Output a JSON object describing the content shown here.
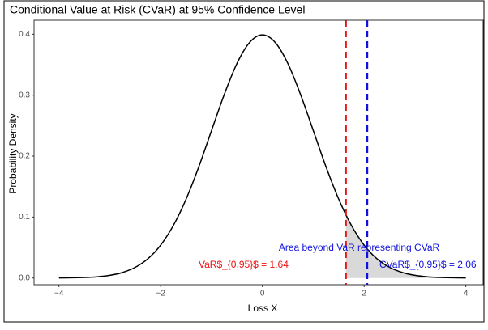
{
  "chart_data": {
    "type": "line",
    "title": "Conditional Value at Risk (CVaR) at 95% Confidence Level",
    "x_label": "Loss X",
    "y_label": "Probability Density",
    "x": [
      -4,
      -3.75,
      -3.5,
      -3.25,
      -3,
      -2.75,
      -2.5,
      -2.25,
      -2,
      -1.75,
      -1.5,
      -1.25,
      -1,
      -0.75,
      -0.5,
      -0.25,
      0,
      0.25,
      0.5,
      0.75,
      1,
      1.25,
      1.5,
      1.75,
      2,
      2.25,
      2.5,
      2.75,
      3,
      3.25,
      3.5,
      3.75,
      4
    ],
    "series": [
      {
        "color": "#000000",
        "values": [
          0.0001,
          0.0004,
          0.0009,
          0.002,
          0.0044,
          0.0091,
          0.0175,
          0.0317,
          0.054,
          0.0863,
          0.1295,
          0.1826,
          0.242,
          0.3011,
          0.3521,
          0.3867,
          0.3989,
          0.3867,
          0.3521,
          0.3011,
          0.242,
          0.1826,
          0.1295,
          0.0863,
          0.054,
          0.0317,
          0.0175,
          0.0091,
          0.0044,
          0.002,
          0.0009,
          0.0004,
          0.0001
        ]
      }
    ],
    "shade": {
      "color": "#d9d9d9",
      "x": [
        1.64,
        1.75,
        2,
        2.25,
        2.5,
        2.75,
        3,
        3.25,
        3.5,
        3.75,
        4
      ],
      "values": [
        0.104,
        0.0863,
        0.054,
        0.0317,
        0.0175,
        0.0091,
        0.0044,
        0.002,
        0.0009,
        0.0004,
        0.0001
      ]
    },
    "vlines": [
      {
        "value": 1.64,
        "color": "#ee1111"
      },
      {
        "value": 2.06,
        "color": "#1111dd"
      }
    ],
    "annotations": [
      {
        "text": "VaR$_{0.95}$ = 1.64",
        "color": "#ee1111"
      },
      {
        "text": "CVaR$_{0.95}$ = 2.06",
        "color": "#1111dd"
      },
      {
        "text": "Area beyond VaR representing CVaR",
        "color": "#1111dd"
      }
    ],
    "xlim": [
      -4.49,
      4.34
    ],
    "ylim": [
      -0.011,
      0.423
    ],
    "xticks": [
      {
        "value": -4,
        "label": "−4"
      },
      {
        "value": -2,
        "label": "−2"
      },
      0,
      2,
      4
    ],
    "yticks": [
      {
        "value": 0,
        "label": "0.0"
      },
      0.1,
      0.2,
      0.3,
      0.4
    ],
    "grid": false
  }
}
